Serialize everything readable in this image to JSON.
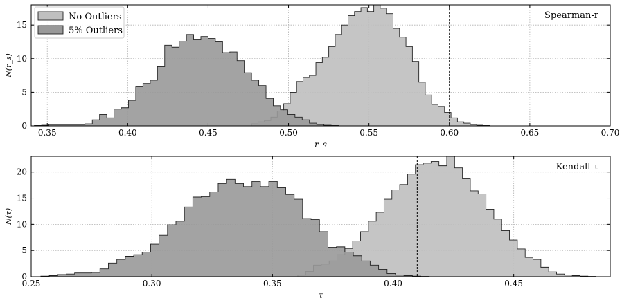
{
  "colors": {
    "no_outliers": "#bfbfbf",
    "outliers": "#999999",
    "edge": "#222222",
    "grid": "#b0b0b0"
  },
  "chart_data": [
    {
      "type": "histogram",
      "annotation": "Spearman-r",
      "xlabel": "r_s",
      "ylabel": "N(r_s)",
      "xlim": [
        0.34,
        0.7
      ],
      "ylim": [
        0,
        18
      ],
      "xticks": [
        0.35,
        0.4,
        0.45,
        0.5,
        0.55,
        0.6,
        0.65,
        0.7
      ],
      "xtick_labels": [
        "0.35",
        "0.40",
        "0.45",
        "0.50",
        "0.55",
        "0.60",
        "0.65",
        "0.70"
      ],
      "yticks": [
        0,
        5,
        10,
        15
      ],
      "ytick_labels": [
        "0",
        "5",
        "10",
        "15"
      ],
      "legend": {
        "location": "top-left",
        "entries": [
          "No Outliers",
          "5% Outliers"
        ]
      },
      "vline": 0.6,
      "series": [
        {
          "name": "No Outliers",
          "bin_start": 0.477,
          "bin_width": 0.004,
          "counts": [
            0.3,
            0.6,
            0.8,
            1.3,
            2.2,
            3.3,
            5.0,
            6.6,
            7.2,
            7.5,
            9.4,
            10.2,
            11.8,
            13.6,
            15.0,
            16.4,
            17.0,
            17.6,
            17.0,
            18.5,
            17.5,
            16.7,
            14.5,
            13.2,
            11.8,
            9.6,
            6.5,
            4.6,
            3.2,
            2.9,
            2.0,
            1.2,
            0.6,
            0.4,
            0.2,
            0.1,
            0.05
          ]
        },
        {
          "name": "5% Outliers",
          "bin_start": 0.342,
          "bin_width": 0.0045,
          "counts": [
            0.05,
            0.1,
            0.2,
            0.2,
            0.2,
            0.2,
            0.2,
            0.3,
            0.9,
            1.7,
            1.2,
            2.5,
            2.7,
            3.8,
            5.8,
            6.3,
            6.8,
            8.8,
            12.0,
            11.7,
            12.6,
            13.6,
            12.8,
            13.3,
            13.0,
            12.5,
            10.9,
            11.0,
            9.7,
            7.9,
            6.8,
            6.0,
            4.1,
            3.0,
            2.4,
            1.7,
            1.3,
            0.9,
            0.4,
            0.2,
            0.1,
            0.05
          ]
        }
      ]
    },
    {
      "type": "histogram",
      "annotation": "Kendall-τ",
      "xlabel": "τ",
      "ylabel": "N(τ)",
      "xlim": [
        0.25,
        0.49
      ],
      "ylim": [
        0,
        23
      ],
      "xticks": [
        0.25,
        0.3,
        0.35,
        0.4,
        0.45
      ],
      "xtick_labels": [
        "0.25",
        "0.30",
        "0.35",
        "0.40",
        "0.45"
      ],
      "yticks": [
        0,
        5,
        10,
        15,
        20
      ],
      "ytick_labels": [
        "0",
        "5",
        "10",
        "15",
        "20"
      ],
      "vline": 0.41,
      "series": [
        {
          "name": "No Outliers",
          "bin_start": 0.3605,
          "bin_width": 0.00325,
          "counts": [
            0.3,
            1.0,
            2.2,
            2.4,
            3.0,
            4.2,
            5.4,
            6.8,
            8.6,
            10.6,
            12.3,
            14.8,
            16.6,
            17.6,
            19.6,
            21.4,
            21.7,
            22.0,
            21.2,
            23.5,
            20.8,
            18.7,
            16.4,
            15.8,
            12.9,
            11.0,
            8.8,
            7.0,
            5.3,
            3.7,
            3.3,
            1.8,
            0.9,
            0.5,
            0.3,
            0.2,
            0.1,
            0.05
          ]
        },
        {
          "name": "5% Outliers",
          "bin_start": 0.254,
          "bin_width": 0.0035,
          "counts": [
            0.1,
            0.2,
            0.4,
            0.5,
            0.7,
            0.7,
            0.8,
            1.5,
            2.6,
            3.3,
            3.9,
            4.2,
            4.7,
            6.2,
            7.9,
            9.9,
            10.6,
            13.3,
            15.2,
            15.3,
            16.2,
            17.8,
            18.6,
            17.8,
            17.2,
            18.2,
            17.2,
            18.2,
            17.0,
            15.7,
            14.8,
            11.1,
            10.9,
            8.6,
            5.6,
            5.7,
            4.7,
            4.0,
            3.0,
            2.2,
            1.4,
            0.6,
            0.3,
            0.2,
            0.1,
            0.05
          ]
        }
      ]
    }
  ]
}
